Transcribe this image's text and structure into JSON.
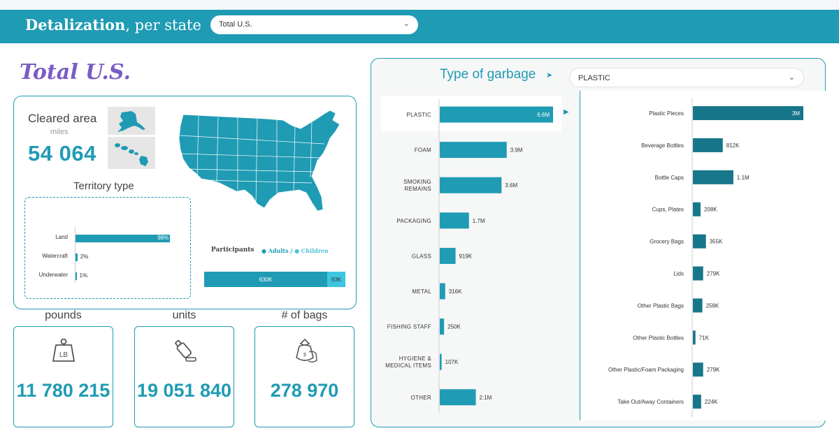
{
  "header": {
    "title_bold": "Detalization",
    "title_rest": ", per state",
    "state_select": "Total U.S."
  },
  "page": {
    "title": "Total U.S."
  },
  "area": {
    "label": "Cleared area",
    "unit": "miles",
    "value": "54 064"
  },
  "territory": {
    "title": "Territory type",
    "items": [
      {
        "label": "Land",
        "value": 98,
        "display": "98%"
      },
      {
        "label": "Watercraft",
        "value": 2,
        "display": "2%"
      },
      {
        "label": "Underwater",
        "value": 1,
        "display": "1%"
      }
    ]
  },
  "participants": {
    "title": "Participants",
    "legend_adults": "Adults",
    "legend_children": "Children",
    "adults": 630000,
    "adults_display": "630K",
    "children": 93000,
    "children_display": "93K",
    "colors": {
      "adults": "#1f9bb4",
      "children": "#3ec5e0"
    }
  },
  "kpis": [
    {
      "label": "pounds",
      "value": "11 780 215",
      "icon": "lb-weight-icon"
    },
    {
      "label": "units",
      "value": "19 051 840",
      "icon": "bottle-icon"
    },
    {
      "label": "# of bags",
      "value": "278 970",
      "icon": "trash-bags-icon"
    }
  ],
  "garbage": {
    "title": "Type of garbage",
    "type_select": "PLASTIC"
  },
  "chart_data": [
    {
      "type": "bar",
      "orientation": "horizontal",
      "categories": [
        "PLASTIC",
        "FOAM",
        "SMOKING REMAINS",
        "PACKAGING",
        "GLASS",
        "METAL",
        "FISHING STAFF",
        "HYGIENE & MEDICAL ITEMS",
        "OTHER"
      ],
      "values": [
        6600000,
        3900000,
        3600000,
        1700000,
        919000,
        316000,
        250000,
        107000,
        2100000
      ],
      "labels": [
        "6.6M",
        "3.9M",
        "3.6M",
        "1.7M",
        "919K",
        "316K",
        "250K",
        "107K",
        "2.1M"
      ],
      "selected": "PLASTIC",
      "color": "#1f9bb4"
    },
    {
      "type": "bar",
      "orientation": "horizontal",
      "categories": [
        "Plastic Pieces",
        "Beverage Bottles",
        "Bottle Caps",
        "Cups, Plates",
        "Grocery Bags",
        "Lids",
        "Other Plastic Bags",
        "Other Plastic Bottles",
        "Other Plastic/Foam Packaging",
        "Take Out/Away Containers"
      ],
      "values": [
        3000000,
        812000,
        1100000,
        208000,
        355000,
        279000,
        258000,
        71000,
        279000,
        224000
      ],
      "labels": [
        "3M",
        "812K",
        "1.1M",
        "208K",
        "355K",
        "279K",
        "258K",
        "71K",
        "279K",
        "224K"
      ],
      "color": "#17768a"
    }
  ]
}
